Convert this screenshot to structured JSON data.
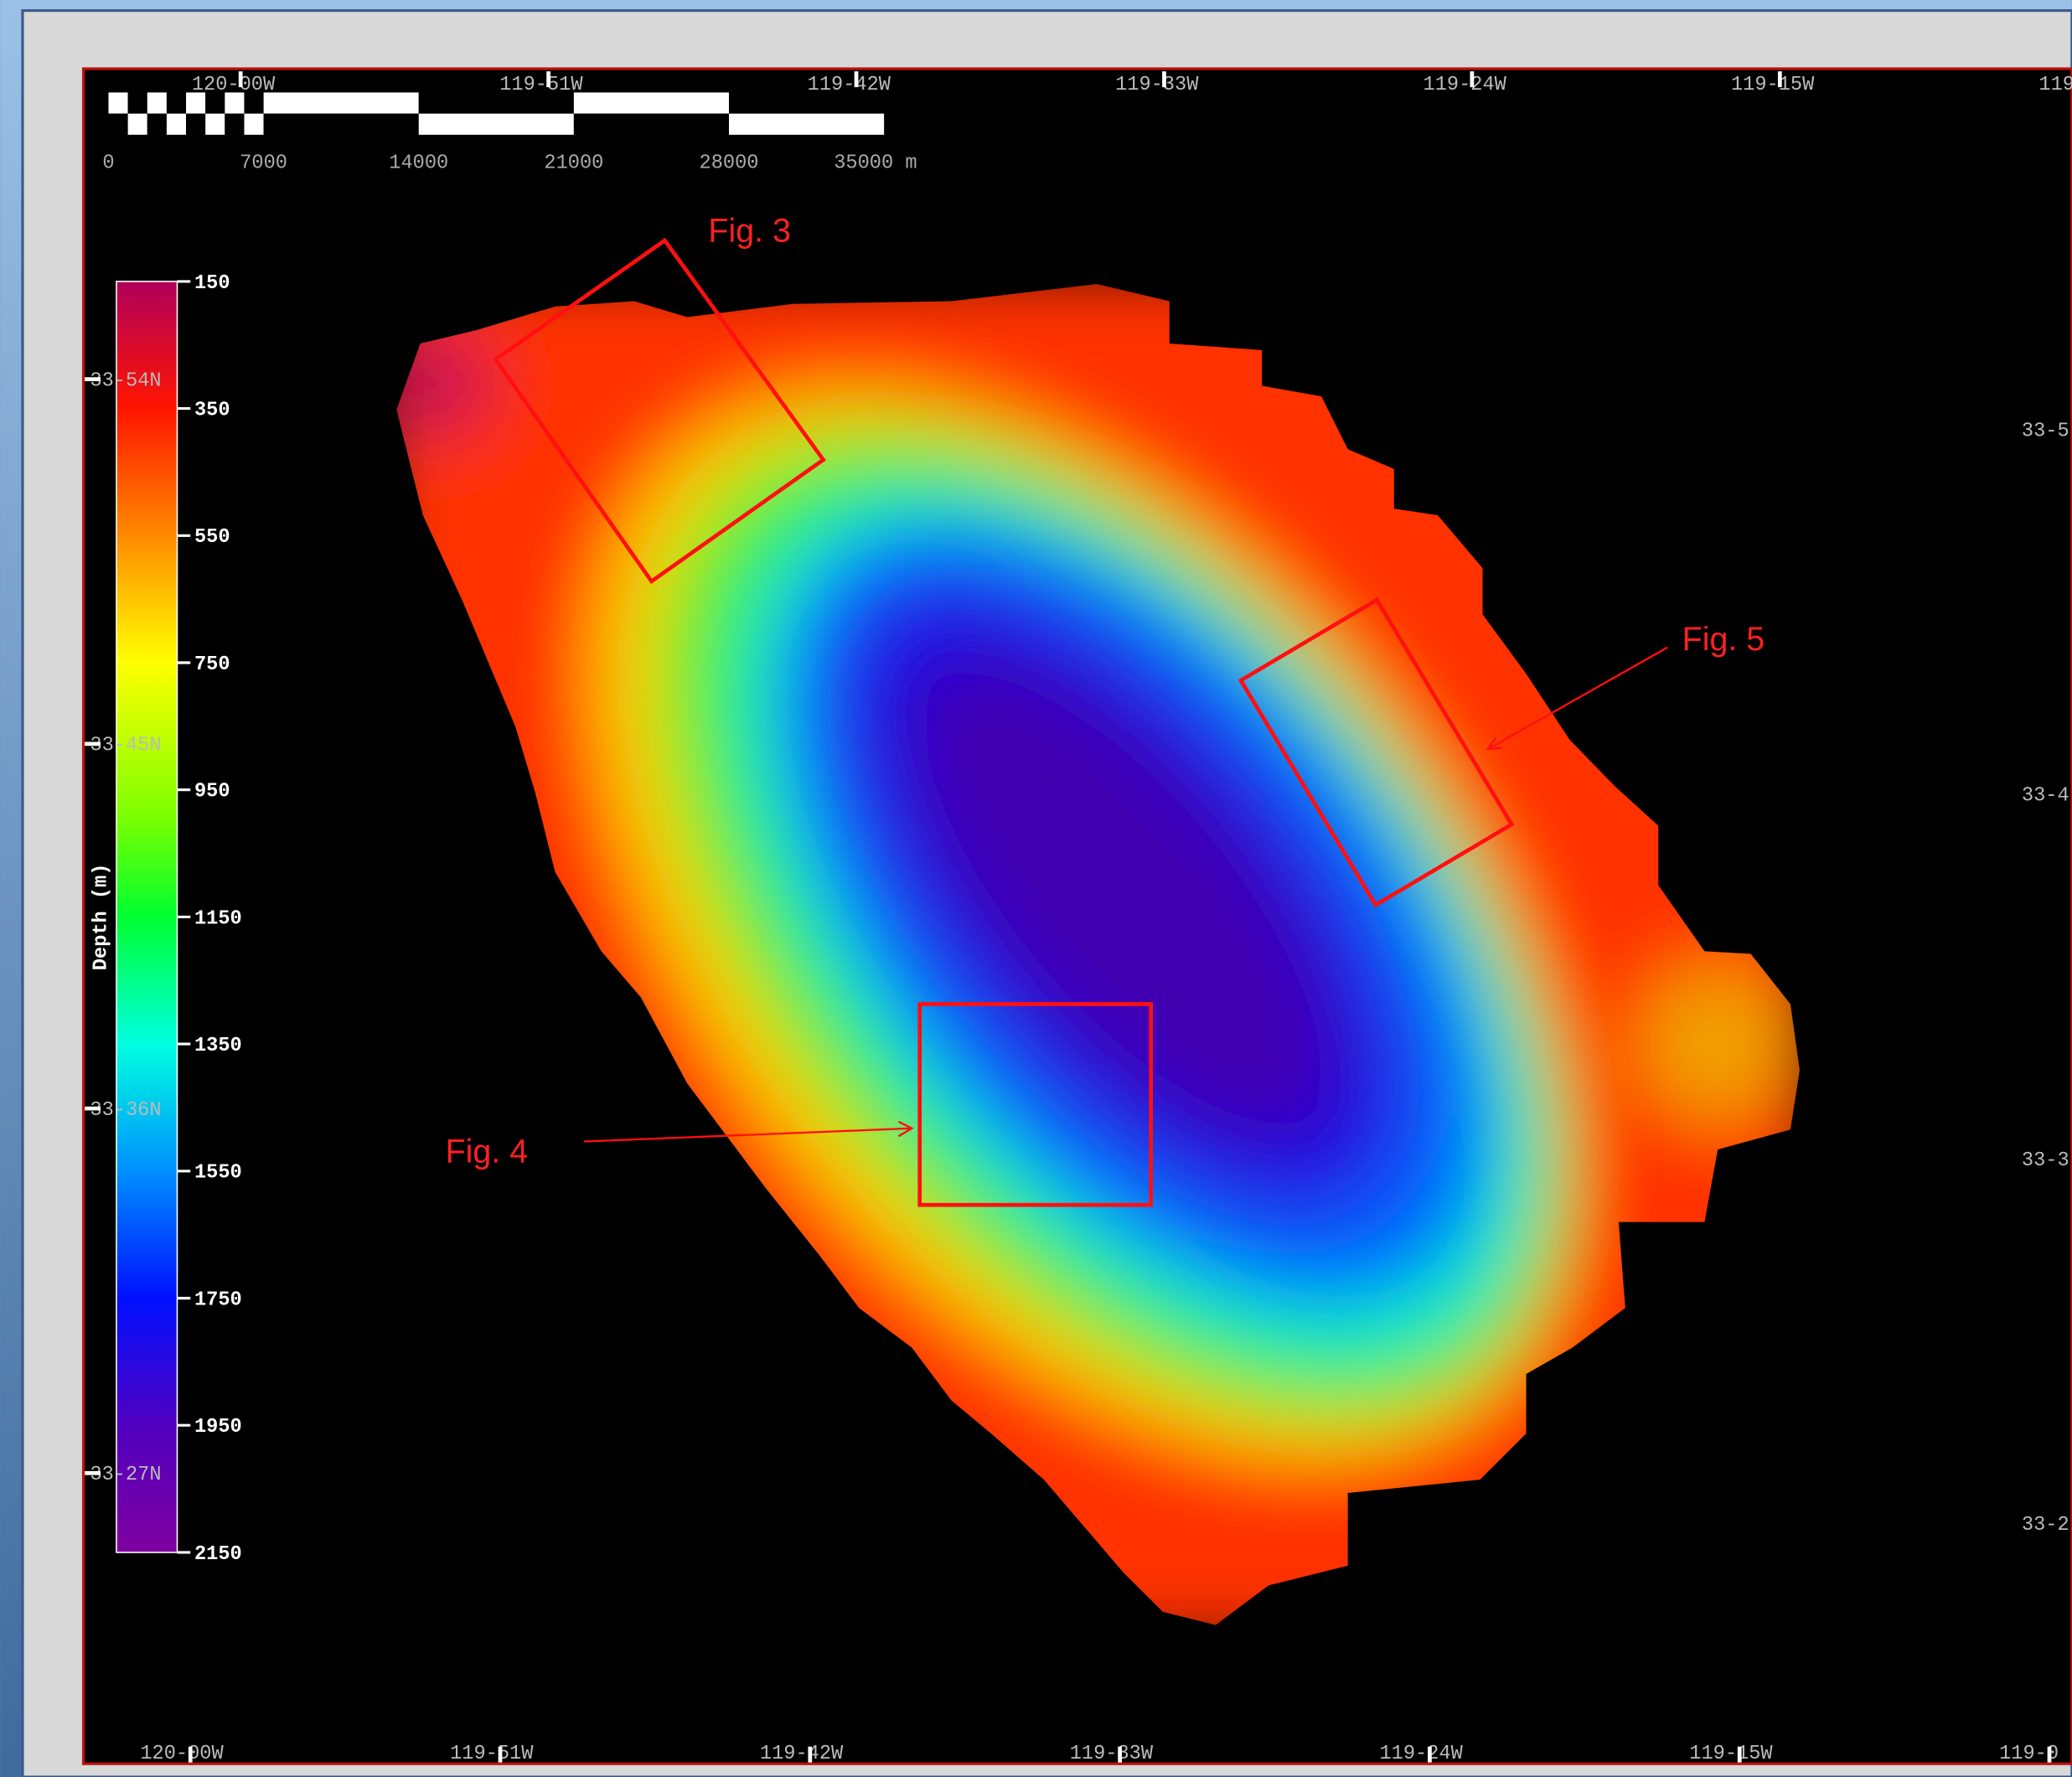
{
  "map": {
    "annotations": [
      "Fig. 3",
      "Fig. 4",
      "Fig. 5"
    ],
    "colorbar": {
      "label": "Depth (m)",
      "range": [
        150,
        2150
      ],
      "ticks": [
        150,
        350,
        550,
        750,
        950,
        1150,
        1350,
        1550,
        1750,
        1950,
        2150
      ]
    },
    "scale_bar": {
      "ticks": [
        0,
        7000,
        14000,
        21000,
        28000,
        {
          "value": 35000,
          "label": "35000 m"
        }
      ]
    },
    "top_lon_labels": [
      "120-00W",
      "119-51W",
      "119-42W",
      "119-33W",
      "119-24W",
      "119-15W",
      "119"
    ],
    "bottom_lon_labels": [
      "120-00W",
      "119-51W",
      "119-42W",
      "119-33W",
      "119-24W",
      "119-15W",
      "119-0"
    ],
    "left_lat_labels": [
      "33-54N",
      "33-45N",
      "33-36N",
      "33-27N"
    ],
    "right_lat_labels": [
      "33-5",
      "33-4",
      "33-3",
      "33-2"
    ]
  }
}
